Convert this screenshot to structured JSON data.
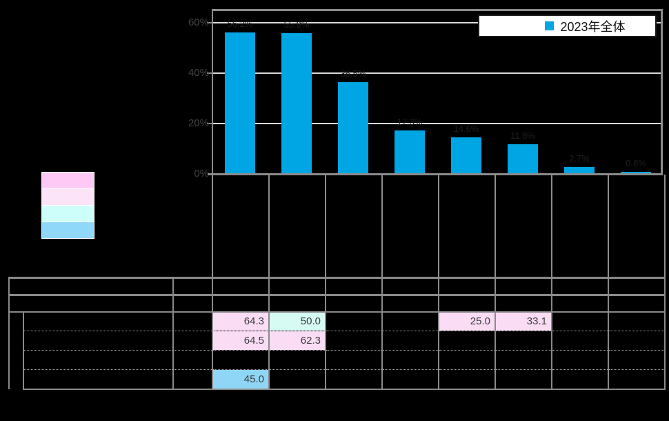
{
  "chart": {
    "legend": {
      "label": "2023年全体"
    },
    "y_axis_tick_labels": [
      "60%",
      "40%",
      "20%",
      "0%"
    ],
    "bar_labels": [
      "56.2%",
      "55.9%",
      "36.5%",
      "17.3%",
      "14.6%",
      "11.8%",
      "2.7%",
      "0.8%"
    ]
  },
  "chart_data": {
    "type": "bar",
    "title": "",
    "categories": [
      "",
      "",
      "",
      "",
      "",
      "",
      "",
      ""
    ],
    "series": [
      {
        "name": "2023年全体",
        "values": [
          56.2,
          55.9,
          36.5,
          17.3,
          14.6,
          11.8,
          2.7,
          0.8
        ]
      }
    ],
    "xlabel": "",
    "ylabel": "",
    "ylim": [
      0,
      65
    ],
    "yticks": [
      0,
      20,
      40,
      60
    ],
    "grid": true,
    "legend_position": "top-right",
    "bar_color": "#00A5E3"
  },
  "color_key": {
    "items": [
      {
        "name": "strong-pink",
        "color": "#FFC9F6"
      },
      {
        "name": "light-pink",
        "color": "#FCE4F8"
      },
      {
        "name": "light-cyan",
        "color": "#CEFEFA"
      },
      {
        "name": "blue",
        "color": "#8FD8F9"
      }
    ]
  },
  "table": {
    "rows": [
      {
        "cells": [
          {
            "col": 1,
            "value": "64.3",
            "bg": "pink"
          },
          {
            "col": 2,
            "value": "50.0",
            "bg": "cyan"
          },
          {
            "col": 5,
            "value": "25.0",
            "bg": "pink"
          },
          {
            "col": 6,
            "value": "33.1",
            "bg": "pink"
          }
        ]
      },
      {
        "cells": [
          {
            "col": 1,
            "value": "64.5",
            "bg": "pink"
          },
          {
            "col": 2,
            "value": "62.3",
            "bg": "pink"
          }
        ]
      },
      {
        "cells": []
      },
      {
        "cells": [
          {
            "col": 1,
            "value": "45.0",
            "bg": "blue"
          }
        ]
      }
    ]
  },
  "colors": {
    "background": "#000000",
    "bar": "#00A5E3",
    "grid_line": "#DADADA",
    "border_gray": "#8A8A8A",
    "cell_pink": "#FBDCF5",
    "cell_cyan": "#D6FBF2",
    "cell_blue": "#8FD6F6",
    "axis_text": "#454545"
  }
}
